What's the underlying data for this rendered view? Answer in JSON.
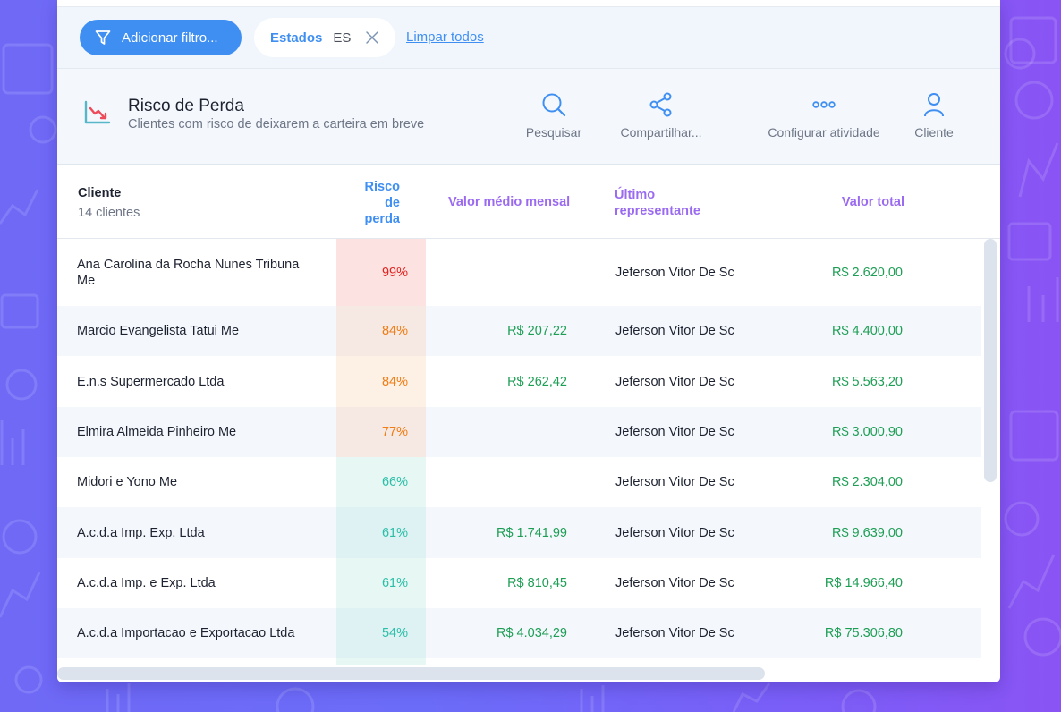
{
  "filters": {
    "add_filter_label": "Adicionar filtro...",
    "chip": {
      "key": "Estados",
      "value": "ES"
    },
    "clear_all_label": "Limpar todos"
  },
  "panel": {
    "icon": "chart-down-icon",
    "title": "Risco de Perda",
    "subtitle": "Clientes com risco de deixarem a carteira em breve",
    "actions": [
      {
        "label": "Pesquisar",
        "icon": "search-icon"
      },
      {
        "label": "Compartilhar...",
        "icon": "share-icon"
      },
      {
        "label": "Configurar atividade",
        "icon": "more-icon"
      },
      {
        "label": "Cliente",
        "icon": "user-icon"
      }
    ]
  },
  "table": {
    "columns": {
      "cliente": "Cliente",
      "count": "14 clientes",
      "risco": "Risco de perda",
      "risco_lines": [
        "Risco",
        "de",
        "perda"
      ],
      "valor_medio": "Valor médio mensal",
      "ultimo_rep": "Último representante",
      "ultimo_rep_lines": [
        "Último",
        "representante"
      ],
      "valor_total": "Valor total"
    },
    "rows": [
      {
        "cliente": "Ana Carolina da Rocha Nunes Tribuna Me",
        "risco": "99%",
        "risco_value": 99,
        "risk_color": "#e0241f",
        "risk_bg": "#fde2e2",
        "valor_medio": "",
        "representante": "Jeferson Vitor De Sc",
        "valor_total": "R$ 2.620,00"
      },
      {
        "cliente": "Marcio Evangelista Tatui Me",
        "risco": "84%",
        "risco_value": 84,
        "risk_color": "#f07d15",
        "risk_bg": "#f6e8e2",
        "valor_medio": "R$ 207,22",
        "representante": "Jeferson Vitor De Sc",
        "valor_total": "R$ 4.400,00"
      },
      {
        "cliente": "E.n.s Supermercado Ltda",
        "risco": "84%",
        "risco_value": 84,
        "risk_color": "#f07d15",
        "risk_bg": "#fdf0e4",
        "valor_medio": "R$ 262,42",
        "representante": "Jeferson Vitor De Sc",
        "valor_total": "R$ 5.563,20"
      },
      {
        "cliente": "Elmira Almeida Pinheiro Me",
        "risco": "77%",
        "risco_value": 77,
        "risk_color": "#f07d15",
        "risk_bg": "#f6e8e2",
        "valor_medio": "",
        "representante": "Jeferson Vitor De Sc",
        "valor_total": "R$ 3.000,90"
      },
      {
        "cliente": "Midori e Yono Me",
        "risco": "66%",
        "risco_value": 66,
        "risk_color": "#2cbfa8",
        "risk_bg": "#e6f7f4",
        "valor_medio": "",
        "representante": "Jeferson Vitor De Sc",
        "valor_total": "R$ 2.304,00"
      },
      {
        "cliente": "A.c.d.a Imp. Exp. Ltda",
        "risco": "61%",
        "risco_value": 61,
        "risk_color": "#2cbfa8",
        "risk_bg": "#def1f3",
        "valor_medio": "R$ 1.741,99",
        "representante": "Jeferson Vitor De Sc",
        "valor_total": "R$ 9.639,00"
      },
      {
        "cliente": "A.c.d.a Imp. e Exp. Ltda",
        "risco": "61%",
        "risco_value": 61,
        "risk_color": "#2cbfa8",
        "risk_bg": "#e6f7f4",
        "valor_medio": "R$ 810,45",
        "representante": "Jeferson Vitor De Sc",
        "valor_total": "R$ 14.966,40"
      },
      {
        "cliente": "A.c.d.a Importacao e Exportacao Ltda",
        "risco": "54%",
        "risco_value": 54,
        "risk_color": "#2cbfa8",
        "risk_bg": "#def1f3",
        "valor_medio": "R$ 4.034,29",
        "representante": "Jeferson Vitor De Sc",
        "valor_total": "R$ 75.306,80"
      },
      {
        "cliente": "",
        "risco": "",
        "risk_color": "#2cbfa8",
        "risk_bg": "#e6f7f4",
        "valor_medio": "",
        "representante": "",
        "valor_total": ""
      }
    ]
  },
  "colors": {
    "accent_blue": "#3f8ff3",
    "accent_purple": "#9a6af0",
    "money_green": "#1e9e55"
  }
}
